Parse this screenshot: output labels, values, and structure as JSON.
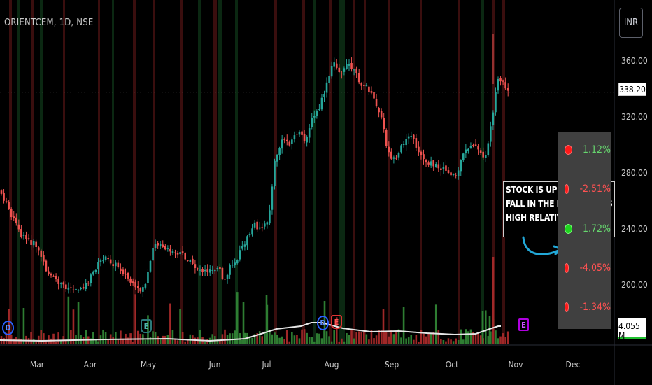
{
  "symbol_line": "ORIENTCEM, 1D, NSE",
  "currency_button": "INR",
  "last_price_tag": "338.20",
  "volume_tag": "4.055 M",
  "annotation_lines": [
    "STOCK IS UP DES",
    "FALL IN THE MA",
    "HIGH RELATIVE"
  ],
  "annotation_trailing_char": "S",
  "indicator_panel": [
    {
      "status": "red",
      "pct": "1.12%",
      "direction": "up"
    },
    {
      "status": "red",
      "pct": "-2.51%",
      "direction": "down"
    },
    {
      "status": "green",
      "pct": "1.72%",
      "direction": "up"
    },
    {
      "status": "red",
      "pct": "-4.05%",
      "direction": "down"
    },
    {
      "status": "red",
      "pct": "-1.34%",
      "direction": "down"
    }
  ],
  "events": [
    {
      "type": "D",
      "style": "dividend",
      "date": "Feb 14"
    },
    {
      "type": "E",
      "style": "earnings",
      "date": "May 3"
    },
    {
      "type": "D",
      "style": "dividend",
      "date": "Jul 31"
    },
    {
      "type": "E",
      "style": "earnings-red",
      "date": "Aug 2"
    },
    {
      "type": "E",
      "style": "earnings-future",
      "date": "Oct 30"
    }
  ],
  "chart_data": {
    "type": "candlestick",
    "symbol": "ORIENTCEM",
    "interval": "1D",
    "exchange": "NSE",
    "currency": "INR",
    "y_axis": {
      "ticks": [
        200,
        240,
        280,
        320,
        360
      ],
      "tick_labels": [
        "200.00",
        "240.00",
        "280.00",
        "320.00",
        "360.00"
      ],
      "range": [
        176,
        390
      ]
    },
    "x_axis": {
      "tick_labels": [
        "Mar",
        "Apr",
        "May",
        "Jun",
        "Jul",
        "Aug",
        "Sep",
        "Oct",
        "Nov",
        "Dec"
      ]
    },
    "last_close": 338.2,
    "last_volume": "4.055 M",
    "colors": {
      "up": "#26a69a",
      "down": "#ef5350",
      "volume_up": "#2e7d32",
      "volume_down": "#a02828",
      "volume_ma": "#e6e6e6",
      "highlight_red": "#3a0e0e",
      "highlight_green": "#0b2812"
    },
    "close_path": [
      {
        "date": "Feb 05",
        "close": 262
      },
      {
        "date": "Feb 09",
        "close": 276
      },
      {
        "date": "Feb 15",
        "close": 258
      },
      {
        "date": "Feb 22",
        "close": 236
      },
      {
        "date": "Mar 01",
        "close": 228
      },
      {
        "date": "Mar 06",
        "close": 212
      },
      {
        "date": "Mar 12",
        "close": 203
      },
      {
        "date": "Mar 18",
        "close": 199
      },
      {
        "date": "Mar 24",
        "close": 197
      },
      {
        "date": "Mar 30",
        "close": 201
      },
      {
        "date": "Apr 04",
        "close": 213
      },
      {
        "date": "Apr 08",
        "close": 220
      },
      {
        "date": "Apr 15",
        "close": 214
      },
      {
        "date": "Apr 19",
        "close": 208
      },
      {
        "date": "Apr 25",
        "close": 196
      },
      {
        "date": "Apr 29",
        "close": 199
      },
      {
        "date": "May 02",
        "close": 216
      },
      {
        "date": "May 04",
        "close": 232
      },
      {
        "date": "May 08",
        "close": 226
      },
      {
        "date": "May 13",
        "close": 223
      },
      {
        "date": "May 17",
        "close": 222
      },
      {
        "date": "May 22",
        "close": 214
      },
      {
        "date": "May 27",
        "close": 210
      },
      {
        "date": "Jun 01",
        "close": 213
      },
      {
        "date": "Jun 04",
        "close": 211
      },
      {
        "date": "Jun 06",
        "close": 200
      },
      {
        "date": "Jun 10",
        "close": 214
      },
      {
        "date": "Jun 14",
        "close": 220
      },
      {
        "date": "Jun 19",
        "close": 232
      },
      {
        "date": "Jun 24",
        "close": 244
      },
      {
        "date": "Jun 28",
        "close": 239
      },
      {
        "date": "Jul 02",
        "close": 248
      },
      {
        "date": "Jul 05",
        "close": 290
      },
      {
        "date": "Jul 09",
        "close": 305
      },
      {
        "date": "Jul 12",
        "close": 302
      },
      {
        "date": "Jul 16",
        "close": 310
      },
      {
        "date": "Jul 19",
        "close": 303
      },
      {
        "date": "Jul 23",
        "close": 320
      },
      {
        "date": "Jul 26",
        "close": 326
      },
      {
        "date": "Jul 30",
        "close": 345
      },
      {
        "date": "Aug 02",
        "close": 360
      },
      {
        "date": "Aug 06",
        "close": 352
      },
      {
        "date": "Aug 10",
        "close": 358
      },
      {
        "date": "Aug 16",
        "close": 345
      },
      {
        "date": "Aug 20",
        "close": 340
      },
      {
        "date": "Aug 23",
        "close": 332
      },
      {
        "date": "Aug 27",
        "close": 318
      },
      {
        "date": "Aug 30",
        "close": 295
      },
      {
        "date": "Sep 03",
        "close": 288
      },
      {
        "date": "Sep 06",
        "close": 300
      },
      {
        "date": "Sep 10",
        "close": 310
      },
      {
        "date": "Sep 13",
        "close": 300
      },
      {
        "date": "Sep 17",
        "close": 290
      },
      {
        "date": "Sep 22",
        "close": 286
      },
      {
        "date": "Sep 26",
        "close": 284
      },
      {
        "date": "Sep 30",
        "close": 281
      },
      {
        "date": "Oct 03",
        "close": 278
      },
      {
        "date": "Oct 07",
        "close": 295
      },
      {
        "date": "Oct 11",
        "close": 302
      },
      {
        "date": "Oct 16",
        "close": 292
      },
      {
        "date": "Oct 18",
        "close": 295
      },
      {
        "date": "Oct 21",
        "close": 325
      },
      {
        "date": "Oct 23",
        "close": 345
      },
      {
        "date": "Oct 25",
        "close": 348
      },
      {
        "date": "Oct 27",
        "close": 340
      },
      {
        "date": "Oct 29",
        "close": 338.2
      }
    ]
  }
}
